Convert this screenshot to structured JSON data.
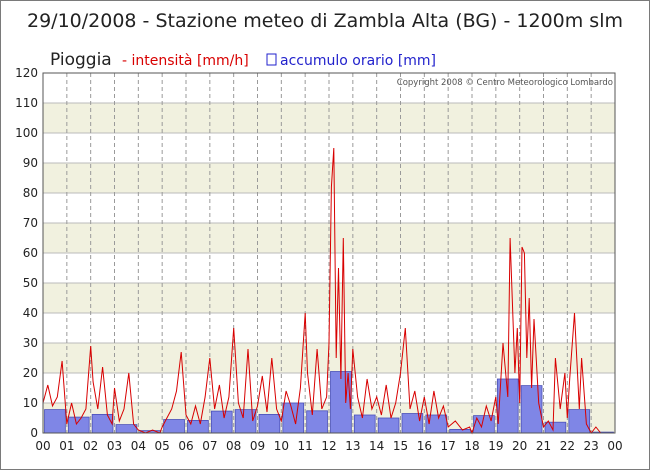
{
  "chart_data": {
    "type": "bar",
    "title": "29/10/2008 - Stazione meteo di Zambla Alta (BG) - 1200m slm",
    "ylabel": "Pioggia",
    "legend": {
      "placement": "top-left",
      "line_entry": "- intensità [mm/h]",
      "bar_entry": "accumulo orario [mm]"
    },
    "copyright": "Copyright 2008 © Centro Meteorologico Lombardo",
    "ylim": [
      0,
      120
    ],
    "yticks": [
      0,
      10,
      20,
      30,
      40,
      50,
      60,
      70,
      80,
      90,
      100,
      110,
      120
    ],
    "grid": true,
    "x_tick_labels": [
      "00",
      "01",
      "02",
      "03",
      "04",
      "05",
      "06",
      "07",
      "08",
      "09",
      "10",
      "11",
      "12",
      "13",
      "14",
      "15",
      "16",
      "17",
      "18",
      "19",
      "20",
      "21",
      "22",
      "23",
      "00"
    ],
    "series": [
      {
        "name": "accumulo orario [mm]",
        "type": "bar",
        "color": "#7f86e6",
        "x_hours": [
          0,
          1,
          2,
          3,
          4,
          5,
          6,
          7,
          8,
          9,
          10,
          11,
          12,
          13,
          14,
          15,
          16,
          17,
          18,
          19,
          20,
          21,
          22,
          23
        ],
        "values": [
          7.8,
          5.3,
          6.2,
          2.8,
          0.8,
          4.5,
          4.2,
          7.3,
          7.8,
          6.2,
          10.0,
          7.4,
          20.5,
          6.0,
          5.0,
          6.5,
          6.0,
          1.2,
          5.8,
          18.0,
          15.8,
          3.6,
          7.8,
          0.3
        ]
      },
      {
        "name": "intensità [mm/h]",
        "type": "line",
        "color": "#d80000",
        "x_hours": [
          0.0,
          0.2,
          0.4,
          0.6,
          0.8,
          1.0,
          1.2,
          1.4,
          1.6,
          1.8,
          2.0,
          2.1,
          2.3,
          2.5,
          2.7,
          2.9,
          3.0,
          3.2,
          3.4,
          3.6,
          3.8,
          4.0,
          4.3,
          4.6,
          4.9,
          5.0,
          5.2,
          5.4,
          5.6,
          5.8,
          6.0,
          6.2,
          6.4,
          6.6,
          6.8,
          7.0,
          7.2,
          7.4,
          7.6,
          7.8,
          8.0,
          8.2,
          8.4,
          8.6,
          8.8,
          9.0,
          9.2,
          9.4,
          9.6,
          9.8,
          10.0,
          10.2,
          10.4,
          10.6,
          10.8,
          11.0,
          11.1,
          11.3,
          11.5,
          11.7,
          11.9,
          12.0,
          12.1,
          12.2,
          12.3,
          12.4,
          12.5,
          12.6,
          12.7,
          12.8,
          12.9,
          13.0,
          13.2,
          13.4,
          13.6,
          13.8,
          14.0,
          14.2,
          14.4,
          14.6,
          14.8,
          15.0,
          15.2,
          15.4,
          15.6,
          15.8,
          16.0,
          16.2,
          16.4,
          16.6,
          16.8,
          17.0,
          17.3,
          17.6,
          17.9,
          18.0,
          18.2,
          18.4,
          18.6,
          18.8,
          19.0,
          19.1,
          19.3,
          19.5,
          19.6,
          19.8,
          19.9,
          20.0,
          20.1,
          20.2,
          20.3,
          20.4,
          20.5,
          20.6,
          20.8,
          21.0,
          21.2,
          21.4,
          21.5,
          21.7,
          21.9,
          22.0,
          22.1,
          22.3,
          22.5,
          22.6,
          22.8,
          23.0,
          23.2,
          23.4
        ],
        "values": [
          10,
          16,
          9,
          12,
          24,
          3,
          10,
          3,
          5,
          8,
          29,
          17,
          8,
          22,
          6,
          3,
          15,
          4,
          8,
          20,
          3,
          1,
          0,
          1,
          0,
          2,
          5,
          8,
          14,
          27,
          6,
          3,
          9,
          3,
          12,
          25,
          8,
          16,
          5,
          12,
          35,
          10,
          5,
          28,
          4,
          9,
          19,
          7,
          25,
          8,
          4,
          14,
          9,
          3,
          15,
          40,
          20,
          6,
          28,
          8,
          12,
          30,
          82,
          95,
          25,
          55,
          18,
          65,
          10,
          20,
          8,
          28,
          12,
          5,
          18,
          8,
          12,
          6,
          16,
          5,
          10,
          20,
          35,
          8,
          14,
          4,
          12,
          3,
          14,
          5,
          9,
          2,
          4,
          1,
          2,
          0,
          5,
          2,
          9,
          4,
          12,
          3,
          30,
          12,
          65,
          20,
          35,
          10,
          62,
          60,
          25,
          45,
          15,
          38,
          10,
          2,
          4,
          1,
          25,
          8,
          20,
          5,
          18,
          40,
          8,
          25,
          3,
          0,
          2,
          0
        ]
      }
    ]
  }
}
